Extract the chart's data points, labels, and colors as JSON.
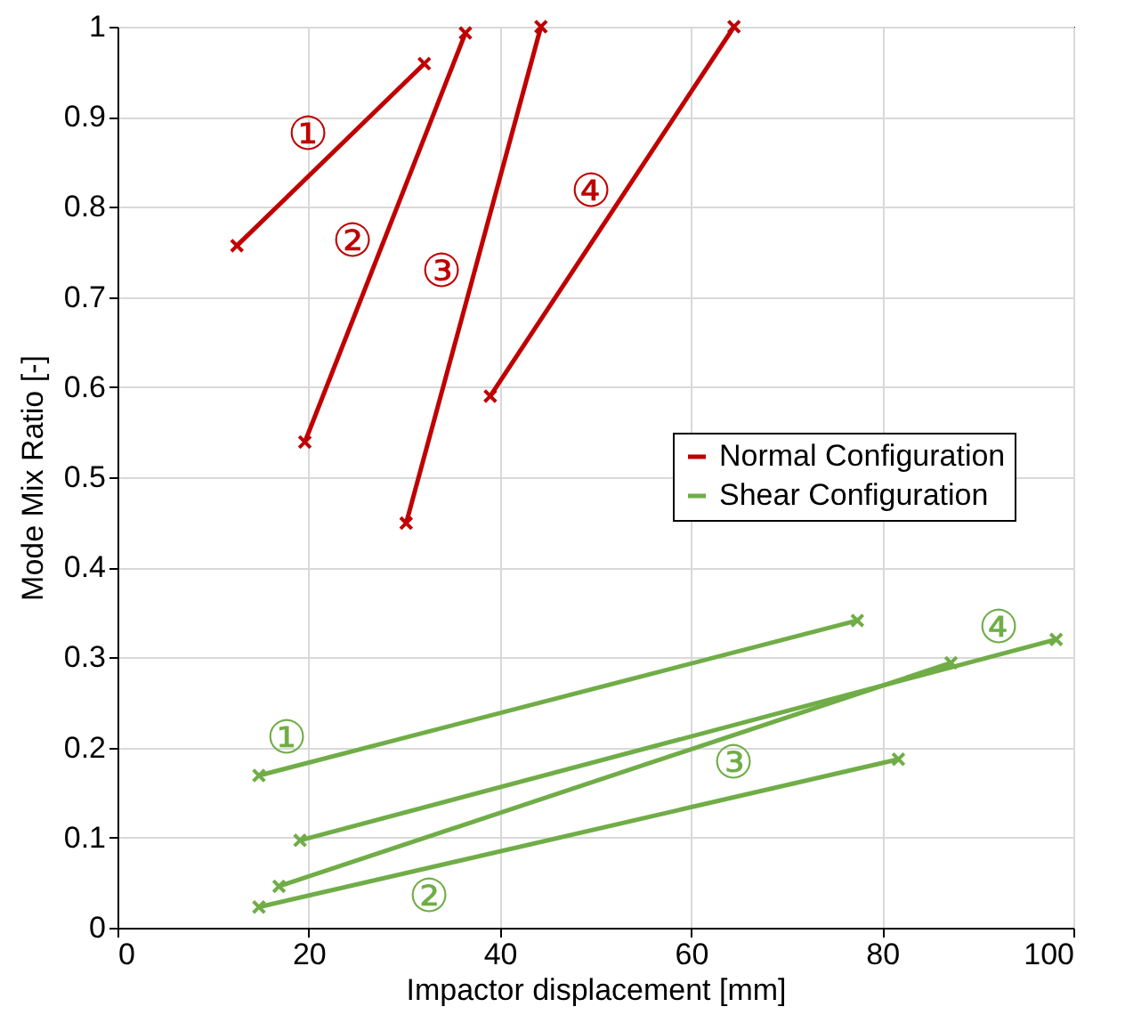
{
  "chart_data": {
    "type": "line",
    "xlabel": "Impactor displacement [mm]",
    "ylabel": "Mode Mix Ratio [-]",
    "xlim": [
      0,
      100
    ],
    "xticks": [
      0,
      20,
      40,
      60,
      80,
      100
    ],
    "ylim": [
      0,
      1
    ],
    "yticks": [
      0,
      0.1,
      0.2,
      0.3,
      0.4,
      0.5,
      0.6,
      0.7,
      0.8,
      0.9,
      1
    ],
    "grid": true,
    "legend": "right",
    "marker": "cross",
    "line_style": "solid",
    "series": [
      {
        "name": "Normal Configuration",
        "color": "#c00000",
        "x": [
          12.5,
          32.1,
          null,
          19.6,
          36.4,
          null,
          30.2,
          44.3,
          null,
          39.0,
          64.5
        ],
        "values": [
          0.757,
          0.959,
          null,
          0.539,
          0.993,
          null,
          0.449,
          1.0,
          null,
          0.59,
          1.0
        ]
      },
      {
        "name": "Shear Configuration",
        "color": "#70ad47",
        "x": [
          14.8,
          77.4,
          null,
          14.8,
          81.7,
          null,
          16.9,
          87.2,
          null,
          19.1,
          98.2
        ],
        "values": [
          0.169,
          0.341,
          null,
          0.023,
          0.187,
          null,
          0.046,
          0.294,
          null,
          0.097,
          0.32
        ]
      }
    ],
    "annotations": [
      "①",
      "②",
      "③",
      "④",
      "①",
      "②",
      "③",
      "④"
    ]
  }
}
